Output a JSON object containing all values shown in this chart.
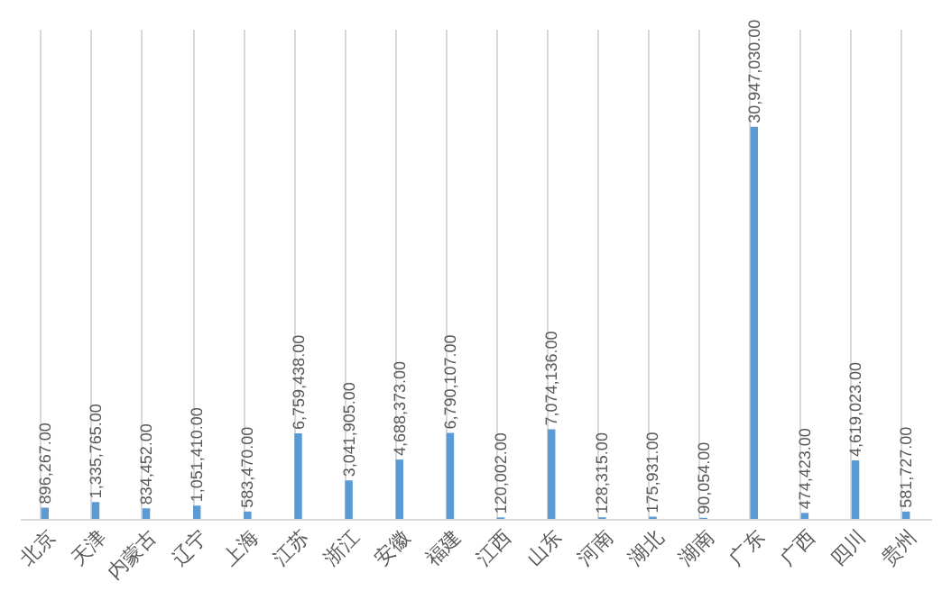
{
  "chart_data": {
    "type": "bar",
    "categories": [
      "北京",
      "天津",
      "内蒙古",
      "辽宁",
      "上海",
      "江苏",
      "浙江",
      "安徽",
      "福建",
      "江西",
      "山东",
      "河南",
      "湖北",
      "湖南",
      "广东",
      "广西",
      "四川",
      "贵州"
    ],
    "values": [
      896267,
      1335765,
      834452,
      1051410,
      583470,
      6759438,
      3041905,
      4688373,
      6790107,
      120002,
      7074136,
      128315,
      175931,
      90054,
      30947030,
      474423,
      4619023,
      581727
    ],
    "value_labels": [
      "896,267.00",
      "1,335,765.00",
      "834,452.00",
      "1,051,410.00",
      "583,470.00",
      "6,759,438.00",
      "3,041,905.00",
      "4,688,373.00",
      "6,790,107.00",
      "120,002.00",
      "7,074,136.00",
      "128,315.00",
      "175,931.00",
      "90,054.00",
      "30,947,030.00",
      "474,423.00",
      "4,619,023.00",
      "581,727.00"
    ],
    "color": "#5b9bd5",
    "grid": "x"
  }
}
